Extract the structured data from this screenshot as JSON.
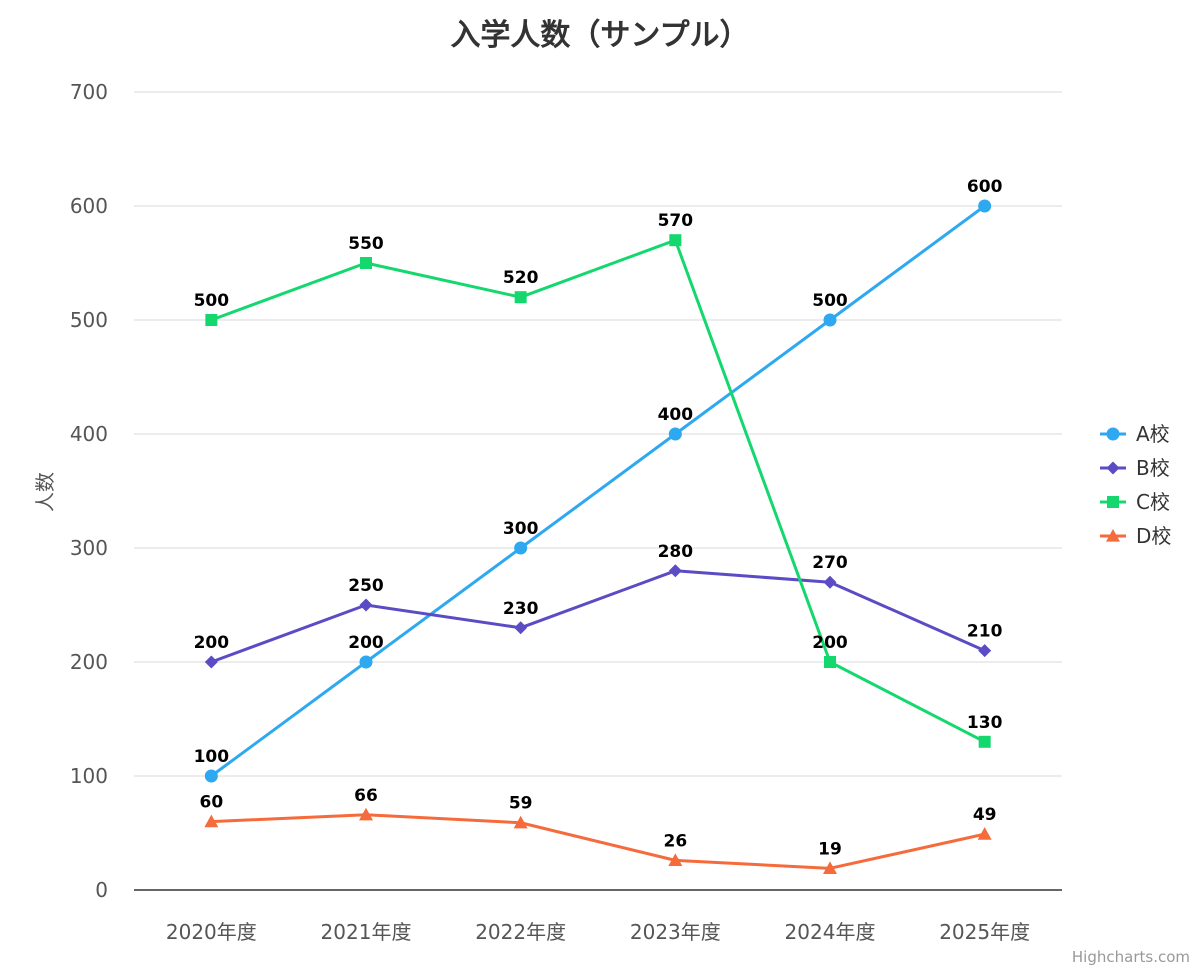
{
  "credit": "Highcharts.com",
  "chart_data": {
    "type": "line",
    "title": "入学人数（サンプル）",
    "xlabel": "",
    "ylabel": "人数",
    "categories": [
      "2020年度",
      "2021年度",
      "2022年度",
      "2023年度",
      "2024年度",
      "2025年度"
    ],
    "ylim": [
      0,
      700
    ],
    "yticks": [
      0,
      100,
      200,
      300,
      400,
      500,
      600,
      700
    ],
    "grid": true,
    "legend_position": "right",
    "series": [
      {
        "name": "A校",
        "values": [
          100,
          200,
          300,
          400,
          500,
          600
        ],
        "color": "#2ea8f0",
        "marker": "circle"
      },
      {
        "name": "B校",
        "values": [
          200,
          250,
          230,
          280,
          270,
          210
        ],
        "color": "#5b4bc4",
        "marker": "diamond"
      },
      {
        "name": "C校",
        "values": [
          500,
          550,
          520,
          570,
          200,
          130
        ],
        "color": "#14d86e",
        "marker": "square"
      },
      {
        "name": "D校",
        "values": [
          60,
          66,
          59,
          26,
          19,
          49
        ],
        "color": "#f56b3c",
        "marker": "triangle"
      }
    ]
  }
}
